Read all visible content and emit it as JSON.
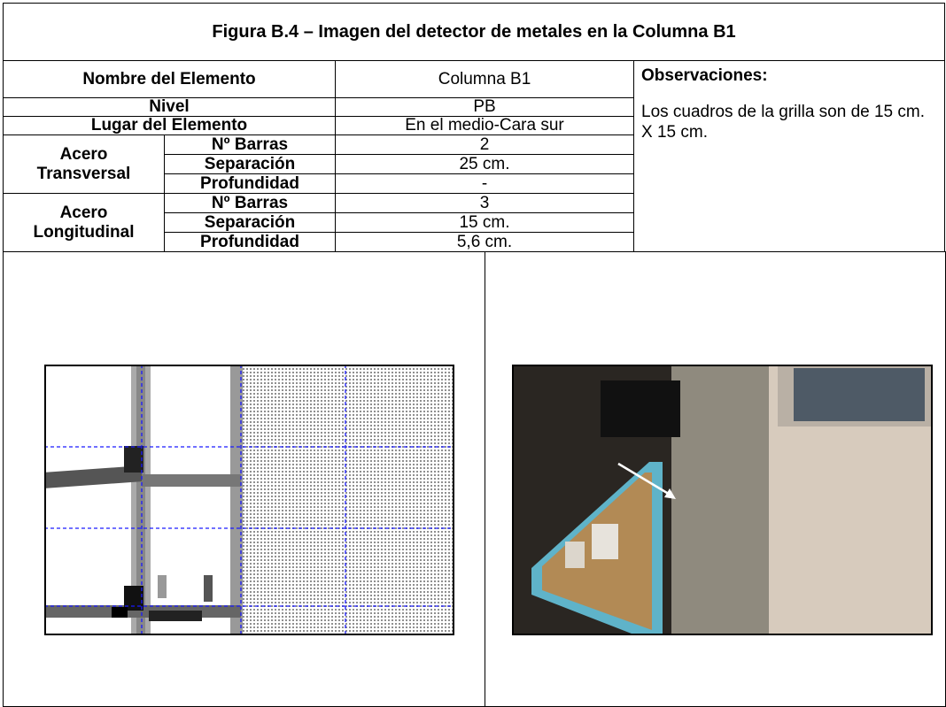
{
  "title": "Figura B.4 – Imagen del detector de metales en la Columna B1",
  "element_name": {
    "label": "Nombre del Elemento",
    "value": "Columna B1"
  },
  "level": {
    "label": "Nivel",
    "value": "PB"
  },
  "location": {
    "label": "Lugar del Elemento",
    "value": "En el medio-Cara sur"
  },
  "transverse": {
    "label": "Acero Transversal",
    "rows": [
      [
        "Nº  Barras",
        "2"
      ],
      [
        "Separación",
        "25 cm."
      ],
      [
        "Profundidad",
        "-"
      ]
    ]
  },
  "longitudinal": {
    "label": "Acero Longitudinal",
    "rows": [
      [
        "Nº  Barras",
        "3"
      ],
      [
        "Separación",
        "15 cm."
      ],
      [
        "Profundidad",
        "5,6 cm."
      ]
    ]
  },
  "observations": {
    "heading": "Observaciones:",
    "text": "Los cuadros de la grilla son de 15 cm. X 15 cm."
  }
}
